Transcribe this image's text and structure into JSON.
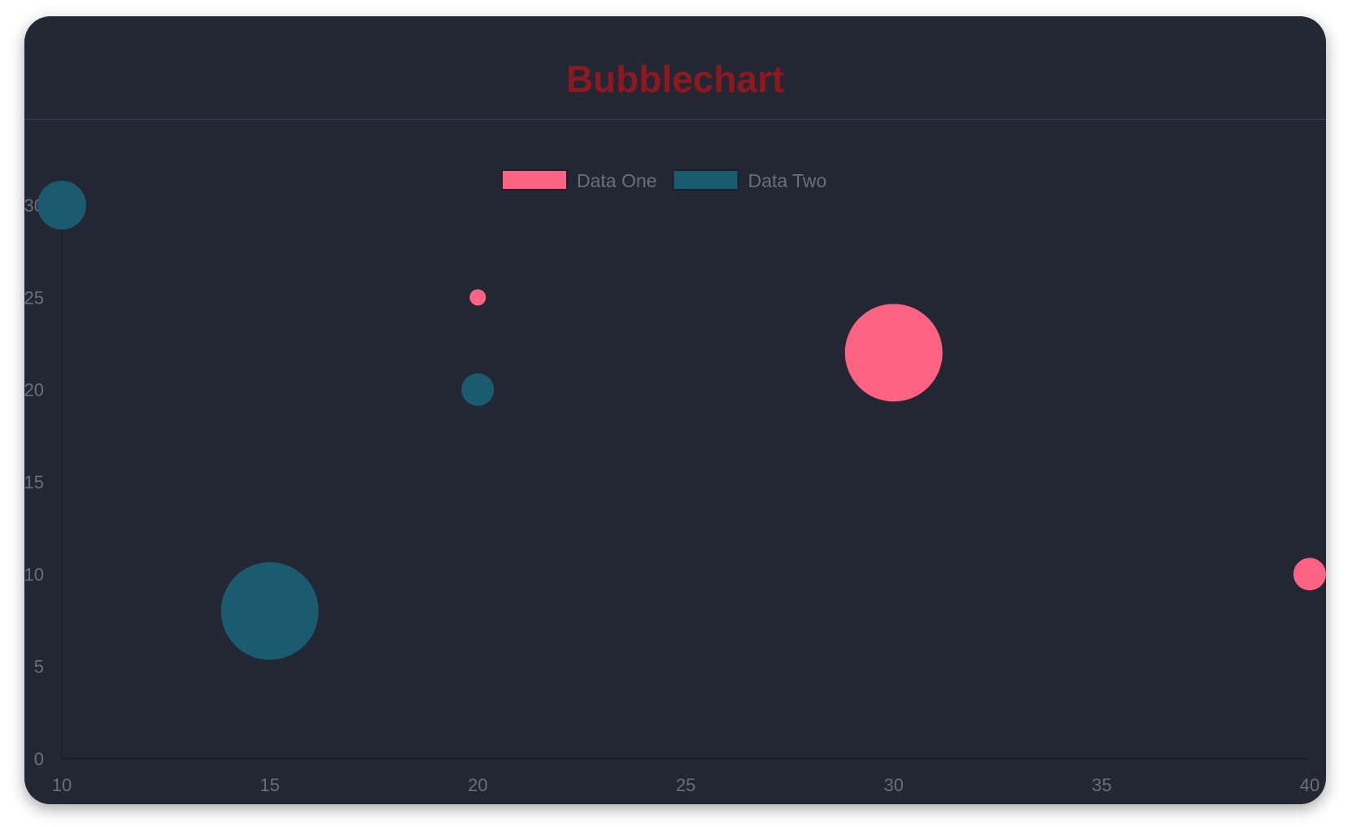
{
  "chart_data": {
    "type": "bubble",
    "title": "Bubblechart",
    "xlim": [
      10,
      40
    ],
    "ylim": [
      0,
      30
    ],
    "x_ticks": [
      "10",
      "15",
      "20",
      "25",
      "30",
      "35",
      "40"
    ],
    "y_ticks": [
      "0",
      "5",
      "10",
      "15",
      "20",
      "25",
      "30"
    ],
    "grid": false,
    "legend_position": "top",
    "series": [
      {
        "name": "Data One",
        "color": "#ff6384",
        "points": [
          {
            "x": 20,
            "y": 25,
            "r": 10
          },
          {
            "x": 30,
            "y": 22,
            "r": 60
          },
          {
            "x": 40,
            "y": 10,
            "r": 20
          }
        ]
      },
      {
        "name": "Data Two",
        "color": "#1a5b70",
        "points": [
          {
            "x": 10,
            "y": 30,
            "r": 30
          },
          {
            "x": 20,
            "y": 20,
            "r": 20
          },
          {
            "x": 15,
            "y": 8,
            "r": 60
          }
        ]
      }
    ]
  },
  "colors": {
    "background": "#222733",
    "title": "#8e1820",
    "text": "#6b6e75"
  }
}
